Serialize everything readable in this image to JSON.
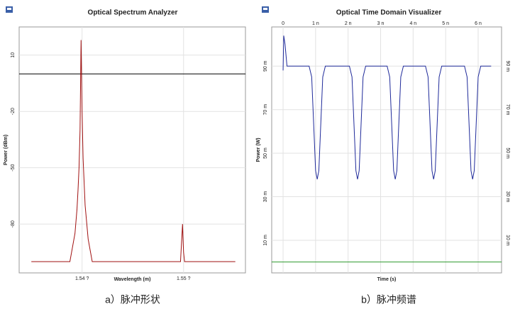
{
  "chart_data": [
    {
      "type": "line",
      "title": "Optical Spectrum Analyzer",
      "xlabel": "Wavelength (m)",
      "ylabel": "Power (dBm)",
      "xlim": [
        1.5338e-06,
        1.5561e-06
      ],
      "ylim": [
        -106,
        25
      ],
      "xticks": [
        {
          "value": 1.54e-06,
          "label": "1.54 ?"
        },
        {
          "value": 1.55e-06,
          "label": "1.55 ?"
        }
      ],
      "yticks": [
        10,
        -20,
        -50,
        -80
      ],
      "grid": true,
      "hline": 0,
      "xaxis_position": "bottom",
      "series": [
        {
          "color": "#a01010",
          "x": [
            1.535e-06,
            1.5388e-06,
            1.5393e-06,
            1.5395e-06,
            1.5396e-06,
            1.5397e-06,
            1.5398e-06,
            1.5399e-06,
            1.54e-06,
            1.5401e-06,
            1.5403e-06,
            1.5406e-06,
            1.541e-06,
            1.5497e-06,
            1.5498e-06,
            1.5499e-06,
            1.55e-06,
            1.5501e-06,
            1.5551e-06
          ],
          "values": [
            -100,
            -100,
            -85,
            -72,
            -62,
            -50,
            -30,
            18,
            -20,
            -45,
            -70,
            -88,
            -100,
            -100,
            -90,
            -80,
            -95,
            -100,
            -100
          ]
        }
      ]
    },
    {
      "type": "line",
      "title": "Optical Time Domain Visualizer",
      "xlabel": "Time (s)",
      "ylabel": "Power (W)",
      "xlim": [
        -3.5e-10,
        6.72e-09
      ],
      "ylim": [
        -0.005,
        0.108
      ],
      "xticks": [
        0,
        {
          "value": 1e-09,
          "label": "1 n"
        },
        {
          "value": 2e-09,
          "label": "2 n"
        },
        {
          "value": 3e-09,
          "label": "3 n"
        },
        {
          "value": 4e-09,
          "label": "4 n"
        },
        {
          "value": 5e-09,
          "label": "5 n"
        },
        {
          "value": 6e-09,
          "label": "6 n"
        }
      ],
      "yticks": [
        {
          "value": 0.09,
          "label": "90 m"
        },
        {
          "value": 0.07,
          "label": "70 m"
        },
        {
          "value": 0.05,
          "label": "50 m"
        },
        {
          "value": 0.03,
          "label": "30 m"
        },
        {
          "value": 0.01,
          "label": "10 m"
        }
      ],
      "grid": true,
      "xaxis_position": "top",
      "yaxis_both_sides": true,
      "series": [
        {
          "color": "#1f2a9a",
          "x": [
            0,
            2e-11,
            6e-11,
            1.2e-10,
            8e-10,
            8.8e-10,
            9.5e-10,
            1e-09,
            1.05e-09,
            1.1e-09,
            1.15e-09,
            1.22e-09,
            1.3e-09,
            2.04e-09,
            2.12e-09,
            2.19e-09,
            2.24e-09,
            2.29e-09,
            2.34e-09,
            2.39e-09,
            2.46e-09,
            2.54e-09,
            3.2e-09,
            3.28e-09,
            3.35e-09,
            3.4e-09,
            3.45e-09,
            3.5e-09,
            3.55e-09,
            3.62e-09,
            3.7e-09,
            4.38e-09,
            4.46e-09,
            4.53e-09,
            4.58e-09,
            4.63e-09,
            4.68e-09,
            4.73e-09,
            4.8e-09,
            4.88e-09,
            5.58e-09,
            5.66e-09,
            5.73e-09,
            5.78e-09,
            5.83e-09,
            5.88e-09,
            5.93e-09,
            6e-09,
            6.08e-09,
            6.4e-09
          ],
          "values": [
            0.088,
            0.104,
            0.1,
            0.09,
            0.09,
            0.085,
            0.06,
            0.042,
            0.038,
            0.042,
            0.06,
            0.085,
            0.09,
            0.09,
            0.085,
            0.06,
            0.042,
            0.038,
            0.042,
            0.06,
            0.085,
            0.09,
            0.09,
            0.085,
            0.06,
            0.042,
            0.038,
            0.042,
            0.06,
            0.085,
            0.09,
            0.09,
            0.085,
            0.06,
            0.042,
            0.038,
            0.042,
            0.06,
            0.085,
            0.09,
            0.09,
            0.085,
            0.06,
            0.042,
            0.038,
            0.042,
            0.06,
            0.085,
            0.09,
            0.09
          ]
        },
        {
          "color": "#2e9a2e",
          "x": [
            -3.5e-10,
            0,
            5e-10,
            1e-09,
            1.5e-09,
            2e-09,
            2.5e-09,
            3e-09,
            3.5e-09,
            4e-09,
            4.5e-09,
            5e-09,
            5.5e-09,
            6e-09,
            6.5e-09,
            6.72e-09
          ],
          "values": [
            0,
            0,
            0,
            0,
            0,
            0,
            0,
            0,
            0,
            0,
            0,
            0,
            0,
            0,
            0,
            0
          ]
        }
      ]
    }
  ],
  "captions": [
    "a）脉冲形状",
    "b）脉冲频谱"
  ]
}
